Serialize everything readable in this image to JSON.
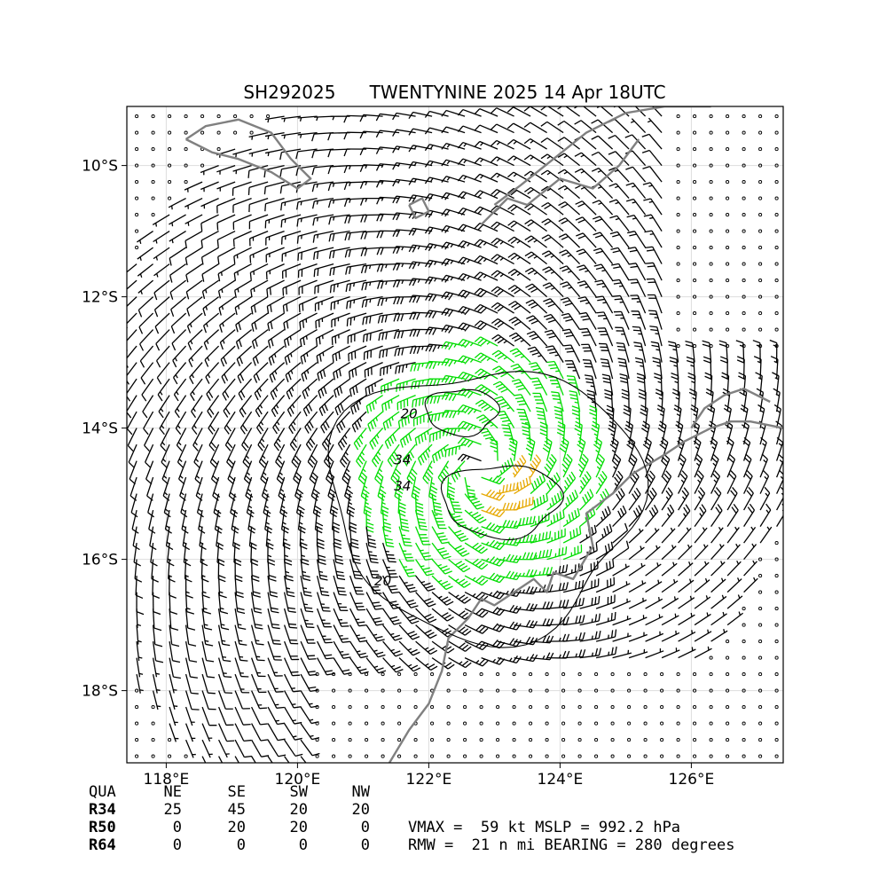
{
  "title": {
    "storm_id": "SH292025",
    "storm_info": "TWENTYNINE 2025 14 Apr 18UTC"
  },
  "map": {
    "lon_range": [
      117.4,
      127.4
    ],
    "lat_range": [
      -19.1,
      -9.1
    ],
    "lat_ticks": [
      {
        "value": -10,
        "label": "10°S"
      },
      {
        "value": -12,
        "label": "12°S"
      },
      {
        "value": -14,
        "label": "14°S"
      },
      {
        "value": -16,
        "label": "16°S"
      },
      {
        "value": -18,
        "label": "18°S"
      }
    ],
    "lon_ticks": [
      {
        "value": 118,
        "label": "118°E"
      },
      {
        "value": 120,
        "label": "120°E"
      },
      {
        "value": 122,
        "label": "122°E"
      },
      {
        "value": 124,
        "label": "124°E"
      },
      {
        "value": 126,
        "label": "126°E"
      }
    ],
    "grid": true,
    "storm_center": {
      "lon": 122.8,
      "lat": -14.6
    },
    "contour_labels": [
      {
        "text": "20",
        "lon": 121.7,
        "lat": -13.85
      },
      {
        "text": "34",
        "lon": 121.6,
        "lat": -14.55
      },
      {
        "text": "34",
        "lon": 121.6,
        "lat": -14.95
      },
      {
        "text": "20",
        "lon": 121.3,
        "lat": -16.4
      }
    ],
    "colors": {
      "coast": "#808080",
      "calm_or_weak": "#000000",
      "gale": "#00dd00",
      "storm": "#e6a800",
      "hurricane": "#e06000",
      "contour": "#000000",
      "grid": "#dddddd"
    }
  },
  "wind_radii": {
    "headers": [
      "QUA",
      "NE",
      "SE",
      "SW",
      "NW"
    ],
    "rows": [
      {
        "label": "R34",
        "values": [
          "25",
          "45",
          "20",
          "20"
        ]
      },
      {
        "label": "R50",
        "values": [
          "0",
          "20",
          "20",
          "0"
        ]
      },
      {
        "label": "R64",
        "values": [
          "0",
          "0",
          "0",
          "0"
        ]
      }
    ]
  },
  "summary": {
    "line1": "VMAX =  59 kt MSLP = 992.2 hPa",
    "line2": "RMW =  21 n mi BEARING = 280 degrees"
  }
}
